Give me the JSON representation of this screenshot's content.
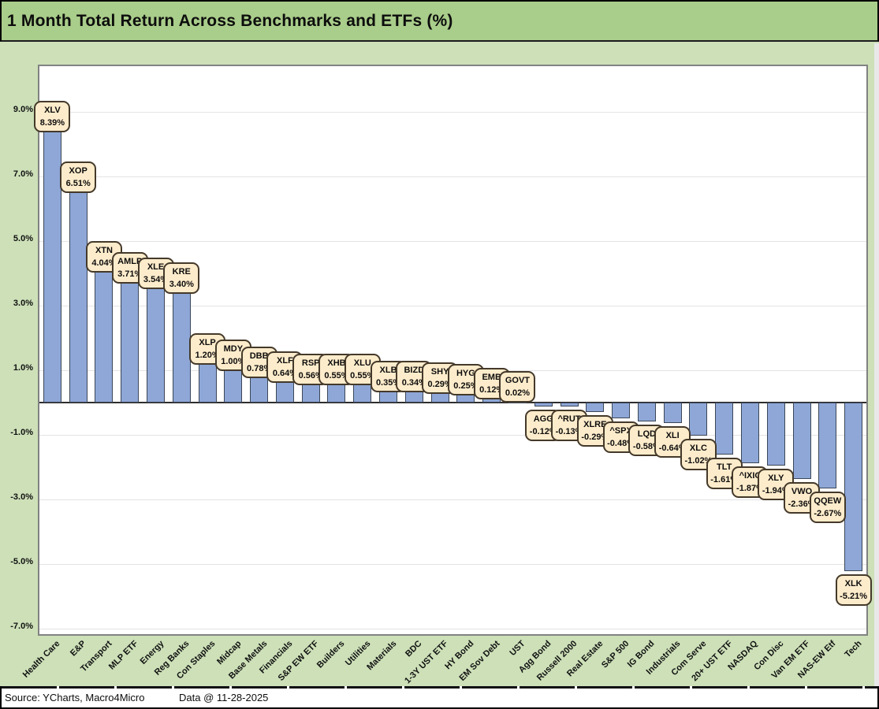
{
  "title": "1 Month Total Return Across Benchmarks and ETFs (%)",
  "footer": {
    "source": "Source: YCharts, Macro4Micro",
    "data_date": "Data @ 11-28-2025"
  },
  "colors": {
    "title_bg": "#a9cd8a",
    "body_bg": "#cde0b8",
    "plot_bg": "#ffffff",
    "plot_border": "#828282",
    "grid": "#e3e3e3",
    "zero_line": "#2e2e2e",
    "bar_fill": "#8ea7d7",
    "bar_border": "#3b4657",
    "callout_bg": "#fdeccb",
    "callout_border": "#44392a",
    "footer_bg": "#ffffff"
  },
  "chart_data": {
    "type": "bar",
    "title": "1 Month Total Return Across Benchmarks and ETFs (%)",
    "xlabel": "",
    "ylabel": "",
    "ylim": [
      -7.17,
      10.41
    ],
    "grid": true,
    "legend_position": "none",
    "ytick_values": [
      9,
      7,
      5,
      3,
      1,
      -1,
      -3,
      -5,
      -7
    ],
    "ytick_labels": [
      "9.0%",
      "7.0%",
      "5.0%",
      "3.0%",
      "1.0%",
      "-1.0%",
      "-3.0%",
      "-5.0%",
      "-7.0%"
    ],
    "bars": [
      {
        "category": "Health Care",
        "ticker": "XLV",
        "value": 8.39,
        "label": "8.39%"
      },
      {
        "category": "E&P",
        "ticker": "XOP",
        "value": 6.51,
        "label": "6.51%"
      },
      {
        "category": "Transport",
        "ticker": "XTN",
        "value": 4.04,
        "label": "4.04%"
      },
      {
        "category": "MLP ETF",
        "ticker": "AMLP",
        "value": 3.71,
        "label": "3.71%"
      },
      {
        "category": "Energy",
        "ticker": "XLE",
        "value": 3.54,
        "label": "3.54%"
      },
      {
        "category": "Reg Banks",
        "ticker": "KRE",
        "value": 3.4,
        "label": "3.40%"
      },
      {
        "category": "Con Staples",
        "ticker": "XLP",
        "value": 1.2,
        "label": "1.20%"
      },
      {
        "category": "Midcap",
        "ticker": "MDY",
        "value": 1.0,
        "label": "1.00%"
      },
      {
        "category": "Base Metals",
        "ticker": "DBB",
        "value": 0.78,
        "label": "0.78%"
      },
      {
        "category": "Financials",
        "ticker": "XLF",
        "value": 0.64,
        "label": "0.64%"
      },
      {
        "category": "S&P EW ETF",
        "ticker": "RSP",
        "value": 0.56,
        "label": "0.56%"
      },
      {
        "category": "Builders",
        "ticker": "XHB",
        "value": 0.55,
        "label": "0.55%"
      },
      {
        "category": "Utilities",
        "ticker": "XLU",
        "value": 0.55,
        "label": "0.55%"
      },
      {
        "category": "Materials",
        "ticker": "XLB",
        "value": 0.35,
        "label": "0.35%"
      },
      {
        "category": "BDC",
        "ticker": "BIZD",
        "value": 0.34,
        "label": "0.34%"
      },
      {
        "category": "1-3Y UST ETF",
        "ticker": "SHY",
        "value": 0.29,
        "label": "0.29%"
      },
      {
        "category": "HY Bond",
        "ticker": "HYG",
        "value": 0.25,
        "label": "0.25%"
      },
      {
        "category": "EM Sov Debt",
        "ticker": "EMB",
        "value": 0.12,
        "label": "0.12%"
      },
      {
        "category": "UST",
        "ticker": "GOVT",
        "value": 0.02,
        "label": "0.02%"
      },
      {
        "category": "Agg Bond",
        "ticker": "AGG",
        "value": -0.12,
        "label": "-0.12%"
      },
      {
        "category": "Russell 2000",
        "ticker": "^RUT",
        "value": -0.13,
        "label": "-0.13%"
      },
      {
        "category": "Real Estate",
        "ticker": "XLRE",
        "value": -0.29,
        "label": "-0.29%"
      },
      {
        "category": "S&P 500",
        "ticker": "^SPX",
        "value": -0.48,
        "label": "-0.48%"
      },
      {
        "category": "IG Bond",
        "ticker": "LQD",
        "value": -0.58,
        "label": "-0.58%"
      },
      {
        "category": "Industrials",
        "ticker": "XLI",
        "value": -0.64,
        "label": "-0.64%"
      },
      {
        "category": "Com Serve",
        "ticker": "XLC",
        "value": -1.02,
        "label": "-1.02%"
      },
      {
        "category": "20+ UST ETF",
        "ticker": "TLT",
        "value": -1.61,
        "label": "-1.61%"
      },
      {
        "category": "NASDAQ",
        "ticker": "^IXIC",
        "value": -1.87,
        "label": "-1.87%"
      },
      {
        "category": "Con Disc",
        "ticker": "XLY",
        "value": -1.94,
        "label": "-1.94%"
      },
      {
        "category": "Van EM ETF",
        "ticker": "VWO",
        "value": -2.36,
        "label": "-2.36%"
      },
      {
        "category": "NAS-EW Etf",
        "ticker": "QQEW",
        "value": -2.67,
        "label": "-2.67%"
      },
      {
        "category": "Tech",
        "ticker": "XLK",
        "value": -5.21,
        "label": "-5.21%"
      }
    ]
  }
}
